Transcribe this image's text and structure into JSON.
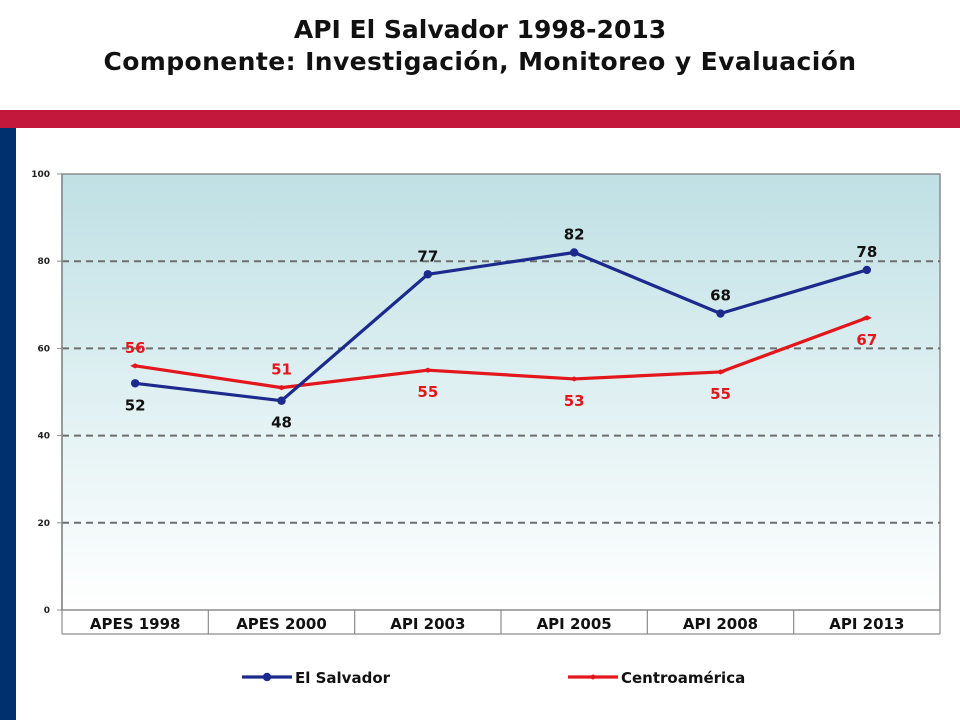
{
  "header": {
    "title": "API El Salvador 1998-2013",
    "subtitle": "Componente: Investigación, Monitoreo y Evaluación"
  },
  "colors": {
    "red_bar": "#c3173b",
    "blue_bar": "#00306e",
    "series_el_salvador": "#1b2a8c",
    "series_centroamerica": "#e3161b",
    "plot_top": "#bfe0e4",
    "plot_bottom": "#ffffff"
  },
  "chart_data": {
    "type": "line",
    "title": "",
    "xlabel": "",
    "ylabel": "",
    "categories": [
      "APES 1998",
      "APES 2000",
      "API 2003",
      "API 2005",
      "API 2008",
      "API 2013"
    ],
    "ylim": [
      0,
      100
    ],
    "yticks": [
      0,
      20,
      40,
      60,
      80,
      100
    ],
    "grid": true,
    "legend_position": "bottom",
    "series": [
      {
        "name": "El Salvador",
        "values": [
          52,
          48,
          77,
          82,
          68,
          78
        ],
        "labels": [
          "52",
          "48",
          "77",
          "82",
          "68",
          "78"
        ],
        "label_positions": [
          "below",
          "below",
          "above",
          "above",
          "above",
          "above"
        ],
        "color": "#1b2a8c",
        "marker": "circle"
      },
      {
        "name": "Centroamérica",
        "values": [
          56,
          51,
          55,
          53,
          54.6,
          67
        ],
        "labels": [
          "56",
          "51",
          "55",
          "53",
          "55",
          "67"
        ],
        "label_positions": [
          "above",
          "above",
          "below",
          "below",
          "below",
          "below"
        ],
        "color": "#e3161b",
        "marker": "diamond"
      }
    ]
  }
}
